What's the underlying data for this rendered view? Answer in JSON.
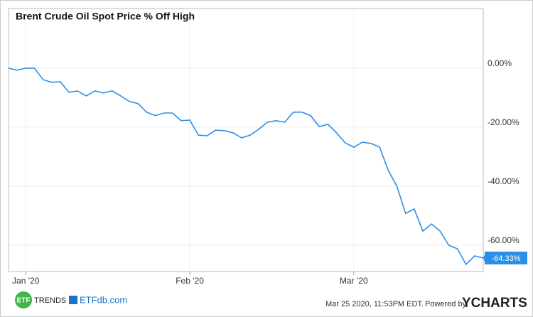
{
  "chart_data": {
    "type": "line",
    "title": "Brent Crude Oil Spot Price % Off High",
    "categories": [
      null,
      null,
      "Jan '20",
      null,
      null,
      null,
      null,
      null,
      null,
      null,
      null,
      null,
      null,
      null,
      null,
      null,
      null,
      null,
      null,
      null,
      null,
      "Feb '20",
      null,
      null,
      null,
      null,
      null,
      null,
      null,
      null,
      null,
      null,
      null,
      null,
      null,
      null,
      null,
      null,
      null,
      null,
      "Mar '20",
      null,
      null,
      null,
      null,
      null,
      null,
      null,
      null,
      null,
      null,
      null,
      null,
      null,
      null,
      null
    ],
    "series": [
      {
        "name": "Brent Crude Oil Spot Price % Off High",
        "color": "#2a8fe6",
        "values": [
          0,
          -0.7,
          0,
          0,
          -3.9,
          -4.8,
          -4.6,
          -8.2,
          -7.7,
          -9.4,
          -7.7,
          -8.4,
          -7.7,
          -9.4,
          -11.3,
          -12.0,
          -14.9,
          -16.1,
          -15.2,
          -15.2,
          -17.8,
          -17.6,
          -22.7,
          -22.9,
          -21.0,
          -21.2,
          -21.9,
          -23.6,
          -22.7,
          -20.7,
          -18.3,
          -17.8,
          -18.3,
          -14.9,
          -14.9,
          -16.1,
          -19.8,
          -19.0,
          -21.9,
          -25.3,
          -26.8,
          -25.1,
          -25.5,
          -26.8,
          -34.7,
          -40.0,
          -49.2,
          -47.7,
          -55.2,
          -52.8,
          -55.2,
          -60.0,
          -61.2,
          -66.5,
          -63.6,
          -64.33
        ],
        "value_labels": [
          null,
          null,
          null,
          null,
          null,
          null,
          null,
          null,
          null,
          null,
          null,
          null,
          null,
          null,
          null,
          null,
          null,
          null,
          null,
          null,
          null,
          null,
          null,
          null,
          null,
          null,
          null,
          null,
          null,
          null,
          null,
          null,
          null,
          null,
          null,
          null,
          null,
          null,
          null,
          null,
          null,
          null,
          null,
          null,
          null,
          null,
          null,
          null,
          null,
          null,
          null,
          null,
          null,
          null,
          null,
          "-64.33%"
        ]
      }
    ],
    "ylim": [
      -68.9,
      20.2
    ],
    "yticks": [
      {
        "value": 0,
        "label": "0.00%"
      },
      {
        "value": -20,
        "label": "-20.00%"
      },
      {
        "value": -40,
        "label": "-40.00%"
      },
      {
        "value": -60,
        "label": "-60.00%"
      }
    ],
    "grid": true
  },
  "footer": {
    "logo_mark": "ETF",
    "logo_text": "TRENDS",
    "logo2": "ETFdb.com",
    "timestamp": "Mar 25 2020, 11:53PM EDT.",
    "powered_by": "Powered by",
    "brand": "YCHARTS"
  }
}
